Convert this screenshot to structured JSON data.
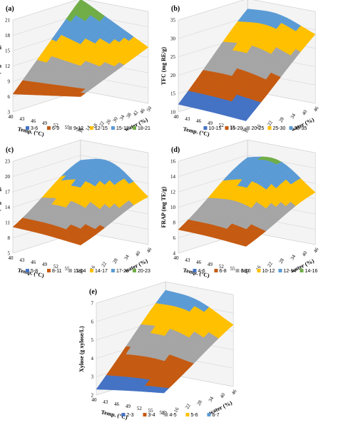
{
  "chart_data": [
    {
      "id": "a",
      "panel_label": "(a)",
      "type": "surface",
      "zlabel": "TPC (mg GAE/g)",
      "xlabel": "Temp. (°C)",
      "ylabel": "water (%)",
      "x_ticks": [
        "40",
        "43",
        "46",
        "49",
        "52",
        "55",
        "58"
      ],
      "y_ticks": [
        "10",
        "14",
        "18",
        "22",
        "26",
        "30",
        "34",
        "38",
        "42",
        "46",
        "50"
      ],
      "z_ticks": [
        "3",
        "6",
        "9",
        "12",
        "15",
        "18",
        "21"
      ],
      "zlim": [
        3,
        21
      ],
      "legend": [
        {
          "label": "3-6",
          "color": "#4472c4"
        },
        {
          "label": "6-9",
          "color": "#c55a11"
        },
        {
          "label": "9-12",
          "color": "#a5a5a5"
        },
        {
          "label": "12-15",
          "color": "#ffc000"
        },
        {
          "label": "15-18",
          "color": "#5b9bd5"
        },
        {
          "label": "18-21",
          "color": "#70ad47"
        }
      ],
      "surface": {
        "z_corners": [
          8.5,
          6.5,
          21,
          14
        ],
        "z_peak": 21
      }
    },
    {
      "id": "b",
      "panel_label": "(b)",
      "type": "surface",
      "zlabel": "TFC (mg RE/g)",
      "xlabel": "Temp. (°C)",
      "ylabel": "water (%)",
      "x_ticks": [
        "40",
        "43",
        "46",
        "49",
        "52",
        "55",
        "58"
      ],
      "y_ticks": [
        "10",
        "16",
        "22",
        "28",
        "34",
        "40",
        "46"
      ],
      "z_ticks": [
        "10",
        "15",
        "20",
        "25",
        "30",
        "35"
      ],
      "zlim": [
        10,
        35
      ],
      "legend": [
        {
          "label": "10-15",
          "color": "#4472c4"
        },
        {
          "label": "15-20",
          "color": "#c55a11"
        },
        {
          "label": "20-25",
          "color": "#a5a5a5"
        },
        {
          "label": "25-30",
          "color": "#ffc000"
        },
        {
          "label": "30-35",
          "color": "#5b9bd5"
        }
      ],
      "surface": {
        "z_corners": [
          11,
          12,
          31,
          28
        ],
        "z_peak": 34
      }
    },
    {
      "id": "c",
      "panel_label": "(c)",
      "type": "surface",
      "zlabel": "ABTS (mg TE/g)",
      "xlabel": "Temp. (°C)",
      "ylabel": "water (%)",
      "x_ticks": [
        "40",
        "43",
        "46",
        "49",
        "52",
        "55",
        "58"
      ],
      "y_ticks": [
        "10",
        "16",
        "22",
        "28",
        "34",
        "40",
        "46"
      ],
      "z_ticks": [
        "5",
        "8",
        "11",
        "14",
        "17",
        "20",
        "23"
      ],
      "zlim": [
        5,
        23
      ],
      "legend": [
        {
          "label": "5-8",
          "color": "#4472c4"
        },
        {
          "label": "8-11",
          "color": "#c55a11"
        },
        {
          "label": "11-14",
          "color": "#a5a5a5"
        },
        {
          "label": "14-17",
          "color": "#ffc000"
        },
        {
          "label": "17-20",
          "color": "#5b9bd5"
        },
        {
          "label": "20-23",
          "color": "#70ad47"
        }
      ],
      "surface": {
        "z_corners": [
          9,
          10,
          17,
          13
        ],
        "z_peak": 22
      }
    },
    {
      "id": "d",
      "panel_label": "(d)",
      "type": "surface",
      "zlabel": "FRAP (mg TE/g)",
      "xlabel": "Temp. (°C)",
      "ylabel": "water (%)",
      "x_ticks": [
        "40",
        "43",
        "46",
        "49",
        "52",
        "55",
        "58"
      ],
      "y_ticks": [
        "10",
        "16",
        "22",
        "28",
        "34",
        "40",
        "46"
      ],
      "z_ticks": [
        "4",
        "6",
        "8",
        "10",
        "12",
        "14",
        "16"
      ],
      "zlim": [
        4,
        16
      ],
      "legend": [
        {
          "label": "4-6",
          "color": "#4472c4"
        },
        {
          "label": "6-8",
          "color": "#c55a11"
        },
        {
          "label": "8-10",
          "color": "#a5a5a5"
        },
        {
          "label": "10-12",
          "color": "#ffc000"
        },
        {
          "label": "12-14",
          "color": "#5b9bd5"
        },
        {
          "label": "14-16",
          "color": "#70ad47"
        }
      ],
      "surface": {
        "z_corners": [
          6.5,
          7,
          12.5,
          10
        ],
        "z_peak": 15.5
      }
    },
    {
      "id": "e",
      "panel_label": "(e)",
      "type": "surface",
      "zlabel": "Xylose (g xylose/L)",
      "xlabel": "Temp. (°C)",
      "ylabel": "water (%)",
      "x_ticks": [
        "40",
        "43",
        "46",
        "49",
        "52",
        "55",
        "58"
      ],
      "y_ticks": [
        "10",
        "16",
        "22",
        "28",
        "34",
        "40",
        "46"
      ],
      "z_ticks": [
        "2",
        "3",
        "4",
        "5",
        "6",
        "7"
      ],
      "zlim": [
        2,
        7
      ],
      "legend": [
        {
          "label": "2-3",
          "color": "#4472c4"
        },
        {
          "label": "3-4",
          "color": "#c55a11"
        },
        {
          "label": "4-5",
          "color": "#a5a5a5"
        },
        {
          "label": "5-6",
          "color": "#ffc000"
        },
        {
          "label": "6-7",
          "color": "#5b9bd5"
        }
      ],
      "surface": {
        "z_corners": [
          2.8,
          2.3,
          6.3,
          5.2
        ],
        "z_peak": 6.9
      }
    }
  ]
}
